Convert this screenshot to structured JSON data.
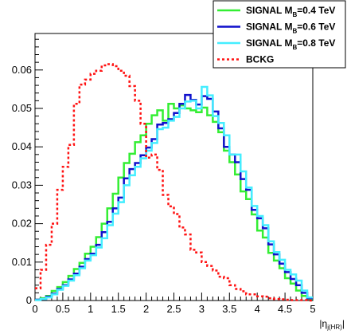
{
  "chart_data": {
    "type": "line",
    "style": "step-histogram",
    "title": "",
    "xlabel": "|η",
    "xlabel_sub": "j(HR)",
    "xlabel_end": "|",
    "ylabel": "",
    "xlim": [
      0,
      5
    ],
    "ylim": [
      0,
      0.0695
    ],
    "x_ticks": [
      "0",
      "0.5",
      "1",
      "1.5",
      "2",
      "2.5",
      "3",
      "3.5",
      "4",
      "4.5",
      "5"
    ],
    "y_ticks": [
      "0",
      "0.01",
      "0.02",
      "0.03",
      "0.04",
      "0.05",
      "0.06"
    ],
    "bin_edges_start": 0,
    "bin_width": 0.1,
    "legend_position": "top-right",
    "series": [
      {
        "legend_text": "SIGNAL M",
        "legend_sub": "B",
        "legend_suffix": "=0.4 TeV",
        "color": "#33ee33",
        "dash": "",
        "values": [
          0.0002,
          0.0006,
          0.0012,
          0.0025,
          0.0035,
          0.0048,
          0.0064,
          0.0082,
          0.0098,
          0.0122,
          0.014,
          0.0165,
          0.02,
          0.024,
          0.0278,
          0.032,
          0.0358,
          0.0382,
          0.0412,
          0.043,
          0.046,
          0.0482,
          0.0495,
          0.0468,
          0.0512,
          0.05,
          0.0508,
          0.05,
          0.0495,
          0.049,
          0.0502,
          0.0482,
          0.0465,
          0.0438,
          0.039,
          0.036,
          0.0328,
          0.0284,
          0.0264,
          0.0224,
          0.0182,
          0.0164,
          0.0124,
          0.0104,
          0.0084,
          0.0058,
          0.0044,
          0.0026,
          0.0012,
          0.0004
        ]
      },
      {
        "legend_text": "SIGNAL M",
        "legend_sub": "B",
        "legend_suffix": "=0.6 TeV",
        "color": "#1010cc",
        "dash": "",
        "values": [
          0.0002,
          0.0004,
          0.001,
          0.0018,
          0.003,
          0.004,
          0.0055,
          0.007,
          0.0088,
          0.0108,
          0.0122,
          0.0145,
          0.0178,
          0.0205,
          0.024,
          0.0268,
          0.0318,
          0.0342,
          0.0358,
          0.0378,
          0.0398,
          0.042,
          0.0458,
          0.0462,
          0.0472,
          0.0488,
          0.0512,
          0.0535,
          0.0522,
          0.051,
          0.0532,
          0.0525,
          0.0492,
          0.0448,
          0.04,
          0.038,
          0.036,
          0.0316,
          0.0288,
          0.0236,
          0.0214,
          0.0188,
          0.0146,
          0.012,
          0.0096,
          0.0074,
          0.0056,
          0.004,
          0.002,
          0.0006
        ]
      },
      {
        "legend_text": "SIGNAL M",
        "legend_sub": "B",
        "legend_suffix": "=0.8 TeV",
        "color": "#44eeff",
        "dash": "",
        "values": [
          0.0001,
          0.0004,
          0.0008,
          0.0016,
          0.0028,
          0.0038,
          0.0052,
          0.0066,
          0.0084,
          0.0104,
          0.0118,
          0.0138,
          0.0162,
          0.0196,
          0.0226,
          0.0256,
          0.03,
          0.0326,
          0.0348,
          0.037,
          0.039,
          0.041,
          0.0446,
          0.045,
          0.0468,
          0.0478,
          0.05,
          0.0518,
          0.052,
          0.05,
          0.0556,
          0.0534,
          0.048,
          0.0462,
          0.043,
          0.038,
          0.038,
          0.0336,
          0.0294,
          0.0246,
          0.022,
          0.0196,
          0.0154,
          0.0126,
          0.0106,
          0.008,
          0.0068,
          0.0052,
          0.0026,
          0.0008
        ]
      },
      {
        "legend_text": "BCKG",
        "legend_sub": "",
        "legend_suffix": "",
        "color": "#ff1111",
        "dash": "3,3",
        "values": [
          0.0032,
          0.008,
          0.0145,
          0.02,
          0.0288,
          0.0348,
          0.0405,
          0.0512,
          0.0562,
          0.0575,
          0.059,
          0.0598,
          0.0612,
          0.0615,
          0.061,
          0.0598,
          0.0585,
          0.0558,
          0.052,
          0.046,
          0.0372,
          0.038,
          0.034,
          0.0275,
          0.0245,
          0.0225,
          0.019,
          0.0172,
          0.0132,
          0.0125,
          0.01,
          0.009,
          0.0078,
          0.0062,
          0.0058,
          0.004,
          0.003,
          0.0024,
          0.0016,
          0.0016,
          0.0011,
          0.001,
          0.0006,
          0.0004,
          0.0003,
          0.0002,
          0.0001,
          0.0001,
          0.0001,
          0.0
        ]
      }
    ]
  }
}
